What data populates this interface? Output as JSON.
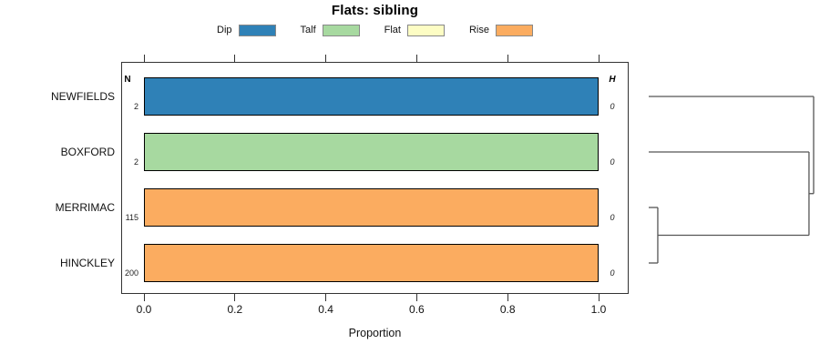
{
  "title": "Flats: sibling",
  "columns": {
    "n_header": "N",
    "h_header": "H"
  },
  "chart_data": {
    "type": "bar",
    "subtype": "horizontal-stacked-proportion-with-dendrogram",
    "title": "Flats: sibling",
    "xlabel": "Proportion",
    "xlim": [
      0,
      1
    ],
    "x_ticks": [
      "0.0",
      "0.2",
      "0.4",
      "0.6",
      "0.8",
      "1.0"
    ],
    "grid": false,
    "legend_position": "top",
    "legend": [
      {
        "label": "Dip",
        "color": "#2f81b7"
      },
      {
        "label": "Talf",
        "color": "#a7d9a0"
      },
      {
        "label": "Flat",
        "color": "#fdfdc4"
      },
      {
        "label": "Rise",
        "color": "#fbac60"
      }
    ],
    "rows": [
      {
        "category": "NEWFIELDS",
        "n": "2",
        "state": "Dip",
        "proportion": 1.0,
        "h": "0"
      },
      {
        "category": "BOXFORD",
        "n": "2",
        "state": "Talf",
        "proportion": 1.0,
        "h": "0"
      },
      {
        "category": "MERRIMAC",
        "n": "115",
        "state": "Rise",
        "proportion": 1.0,
        "h": "0"
      },
      {
        "category": "HINCKLEY",
        "n": "200",
        "state": "Rise",
        "proportion": 1.0,
        "h": "0"
      }
    ],
    "dendrogram": {
      "leaf_order": [
        "NEWFIELDS",
        "BOXFORD",
        "MERRIMAC",
        "HINCKLEY"
      ],
      "merges": [
        {
          "id": "m0",
          "a": "MERRIMAC",
          "b": "HINCKLEY",
          "height": 0.055
        },
        {
          "id": "m1",
          "a": "BOXFORD",
          "b": "m0",
          "height": 0.972
        },
        {
          "id": "m2",
          "a": "NEWFIELDS",
          "b": "m1",
          "height": 1.0
        }
      ]
    }
  }
}
